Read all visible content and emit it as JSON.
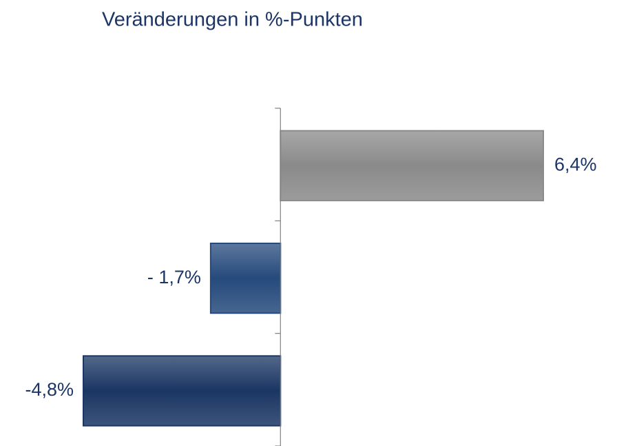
{
  "chart_data": {
    "type": "hbar",
    "title": "Veränderungen in %-Punkten",
    "categories": [
      null,
      null,
      null
    ],
    "values": [
      6.4,
      -1.7,
      -4.8
    ],
    "value_labels": [
      "6,4%",
      "- 1,7%",
      "-4,8%"
    ],
    "colors": [
      "#8a8a8a",
      "#264a7c",
      "#1a3663"
    ]
  }
}
